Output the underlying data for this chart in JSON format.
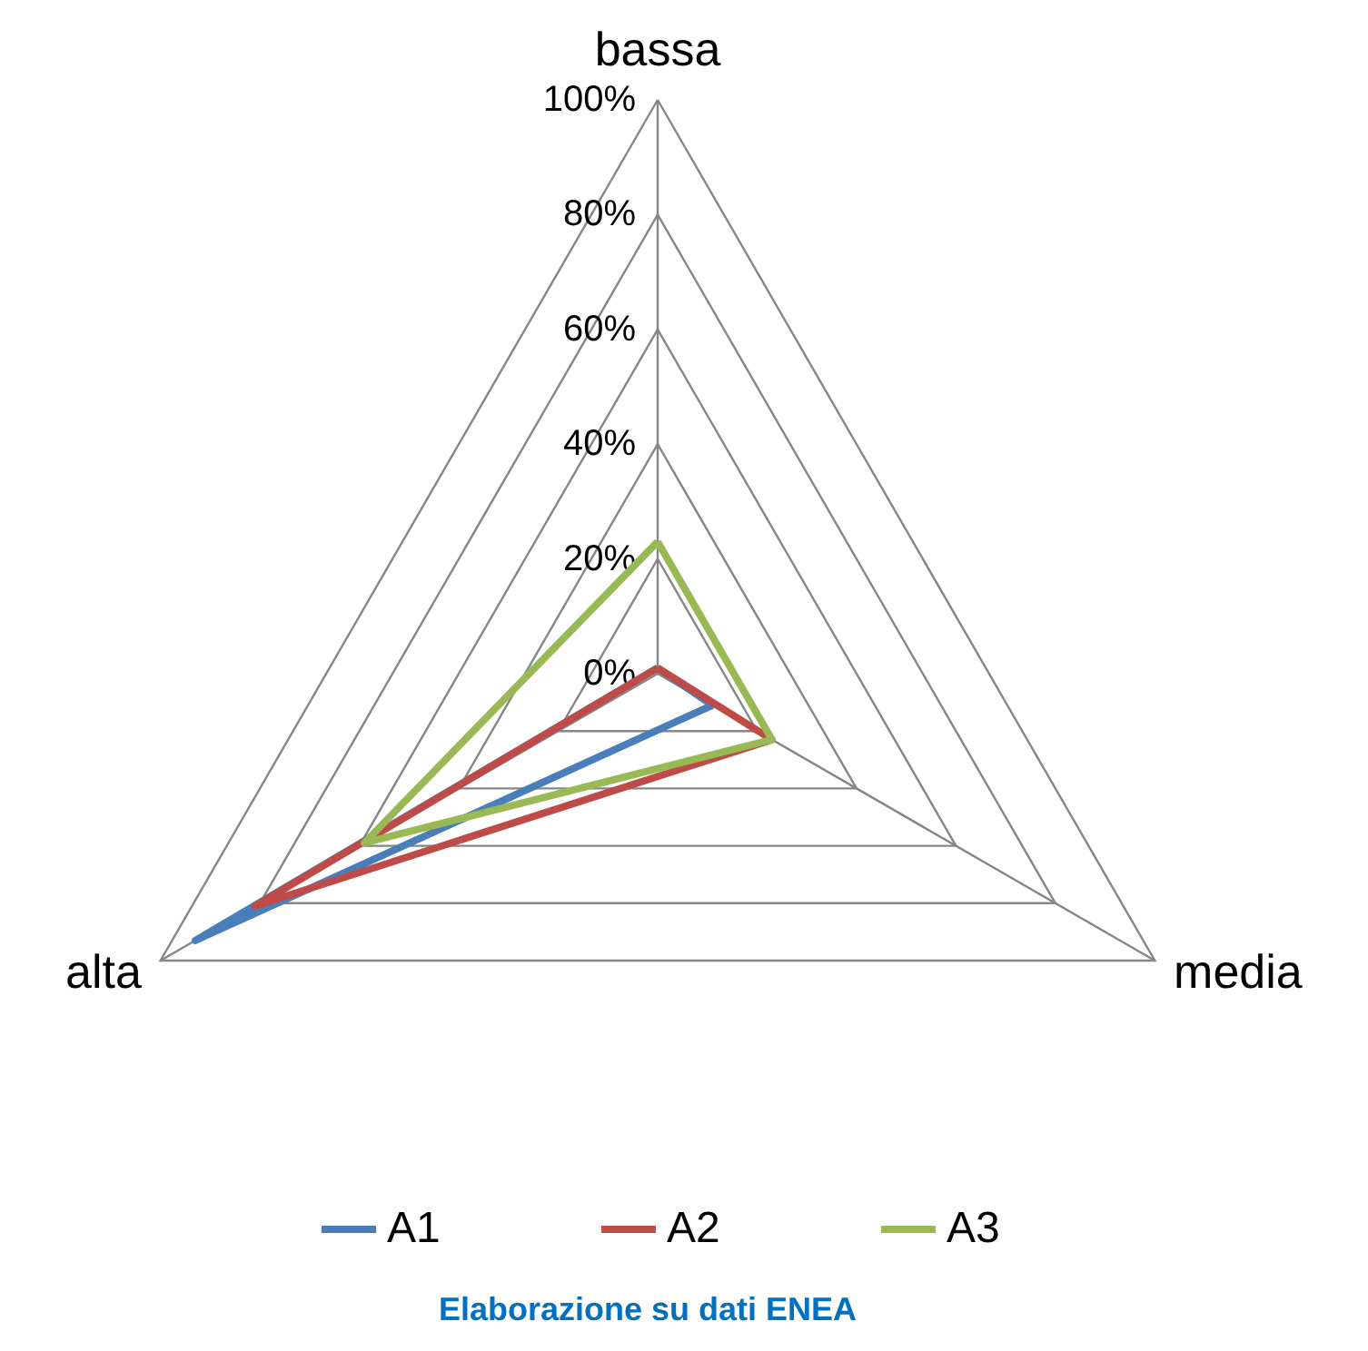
{
  "chart_data": {
    "type": "radar",
    "categories": [
      "bassa",
      "media",
      "alta"
    ],
    "series": [
      {
        "name": "A1",
        "color": "#4a7ebb",
        "values": [
          1,
          11,
          93
        ]
      },
      {
        "name": "A2",
        "color": "#be4b48",
        "values": [
          1,
          23,
          81
        ]
      },
      {
        "name": "A3",
        "color": "#98b954",
        "values": [
          23,
          23,
          59
        ]
      }
    ],
    "ylim": [
      0,
      100
    ],
    "yticks": [
      {
        "value": 0,
        "label": "0%"
      },
      {
        "value": 20,
        "label": "20%"
      },
      {
        "value": 40,
        "label": "40%"
      },
      {
        "value": 60,
        "label": "60%"
      },
      {
        "value": 80,
        "label": "80%"
      },
      {
        "value": 100,
        "label": "100%"
      }
    ],
    "grid": true,
    "legend": "bottom",
    "marker": "none",
    "line_style": "solid",
    "annotations": [
      "Elaborazione su dati ENEA"
    ]
  }
}
